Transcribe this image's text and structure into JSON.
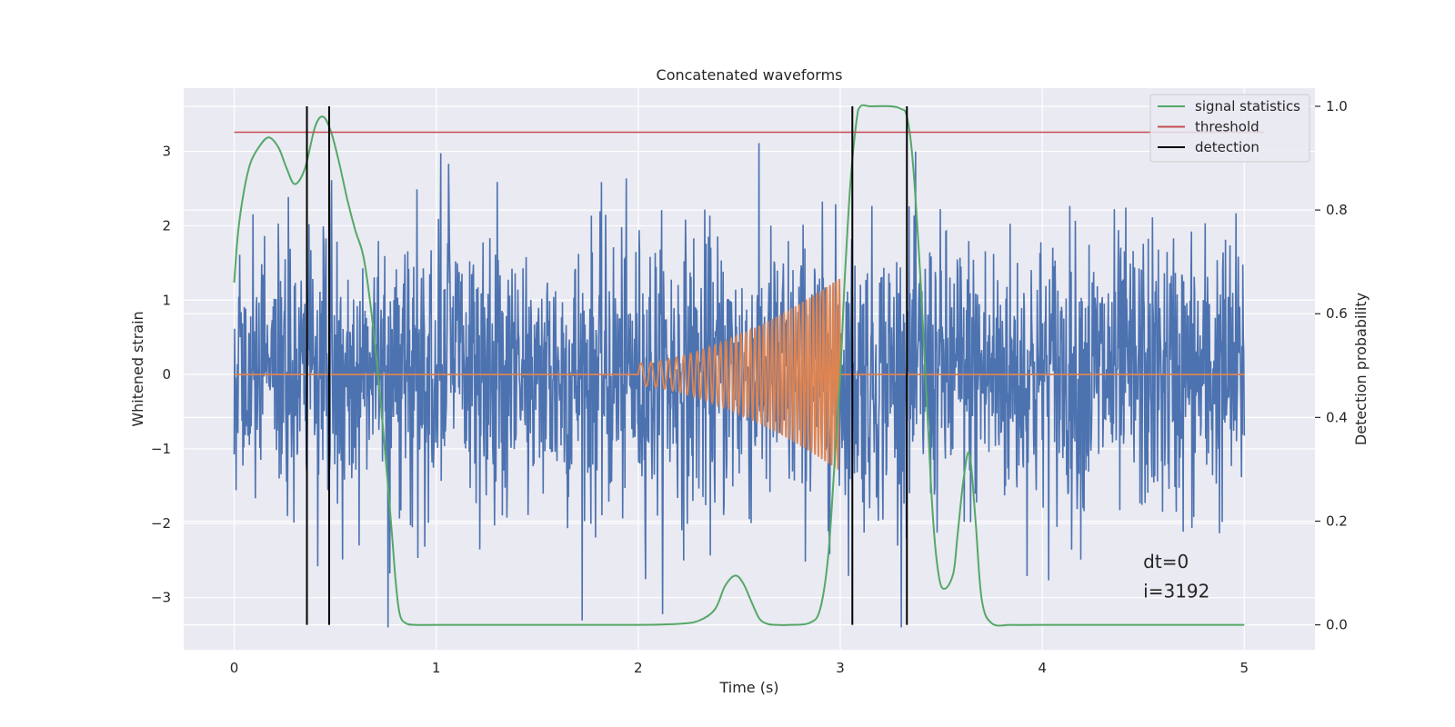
{
  "chart_data": {
    "type": "line",
    "title": "Concatenated waveforms",
    "xlabel": "Time (s)",
    "ylabel": "Whitened strain",
    "y2label": "Detection probability",
    "xlim": [
      -0.25,
      5.35
    ],
    "ylim": [
      -3.7,
      3.85
    ],
    "y2lim": [
      -0.048,
      1.035
    ],
    "xticks": [
      0,
      1,
      2,
      3,
      4,
      5
    ],
    "xtick_labels": [
      "0",
      "1",
      "2",
      "3",
      "4",
      "5"
    ],
    "yticks": [
      -3,
      -2,
      -1,
      0,
      1,
      2,
      3
    ],
    "ytick_labels": [
      "−3",
      "−2",
      "−1",
      "0",
      "1",
      "2",
      "3"
    ],
    "y2ticks": [
      0.0,
      0.2,
      0.4,
      0.6,
      0.8,
      1.0
    ],
    "y2tick_labels": [
      "0.0",
      "0.2",
      "0.4",
      "0.6",
      "0.8",
      "1.0"
    ],
    "grid": true,
    "legend_position": "top-right",
    "colors": {
      "noise": "#4c72b0",
      "injection": "#dd8452",
      "signal_statistics": "#55a868",
      "threshold": "#c44e52",
      "detection": "#000000",
      "background": "#eaeaf2",
      "grid": "#ffffff"
    },
    "legend": [
      {
        "label": "signal statistics",
        "color": "#55a868"
      },
      {
        "label": "threshold",
        "color": "#c44e52"
      },
      {
        "label": "detection",
        "color": "#000000"
      }
    ],
    "series": [
      {
        "name": "signal statistics",
        "axis": "right",
        "x": [
          0.0,
          0.02,
          0.05,
          0.08,
          0.12,
          0.17,
          0.22,
          0.26,
          0.3,
          0.35,
          0.4,
          0.44,
          0.48,
          0.52,
          0.56,
          0.6,
          0.64,
          0.68,
          0.72,
          0.75,
          0.78,
          0.8,
          0.82,
          0.85,
          0.9,
          1.0,
          1.5,
          2.0,
          2.2,
          2.3,
          2.38,
          2.43,
          2.48,
          2.52,
          2.56,
          2.6,
          2.64,
          2.68,
          2.75,
          2.85,
          2.9,
          2.94,
          2.97,
          3.0,
          3.02,
          3.05,
          3.08,
          3.1,
          3.15,
          3.25,
          3.3,
          3.33,
          3.36,
          3.4,
          3.43,
          3.46,
          3.49,
          3.52,
          3.56,
          3.58,
          3.61,
          3.64,
          3.67,
          3.7,
          3.75,
          3.85,
          4.0,
          4.5,
          5.0
        ],
        "y": [
          0.66,
          0.76,
          0.84,
          0.89,
          0.92,
          0.94,
          0.92,
          0.88,
          0.85,
          0.88,
          0.96,
          0.98,
          0.95,
          0.89,
          0.82,
          0.76,
          0.71,
          0.6,
          0.45,
          0.32,
          0.18,
          0.08,
          0.02,
          0.003,
          0.0,
          0.0,
          0.0,
          0.0,
          0.002,
          0.008,
          0.03,
          0.075,
          0.095,
          0.08,
          0.045,
          0.012,
          0.002,
          0.0,
          0.0,
          0.004,
          0.03,
          0.13,
          0.3,
          0.48,
          0.65,
          0.85,
          0.97,
          1.0,
          1.0,
          1.0,
          0.995,
          0.98,
          0.89,
          0.65,
          0.42,
          0.2,
          0.09,
          0.07,
          0.1,
          0.17,
          0.28,
          0.33,
          0.2,
          0.05,
          0.003,
          0.0,
          0.0,
          0.0,
          0.0
        ]
      },
      {
        "name": "threshold",
        "axis": "right",
        "x": [
          0.0,
          5.1
        ],
        "y": [
          0.95,
          0.95
        ]
      },
      {
        "name": "detection",
        "axis": "right",
        "type": "vlines",
        "x": [
          0.36,
          0.47,
          3.06,
          3.33
        ],
        "ymin": 0.0,
        "ymax": 1.0
      },
      {
        "name": "",
        "axis": "left",
        "description_free": true,
        "x_range": [
          0.0,
          5.0
        ],
        "amplitude": 1.0
      },
      {
        "name": "",
        "axis": "left",
        "type": "chirp",
        "x_range": [
          2.0,
          3.0
        ],
        "amp_start": 0.15,
        "amp_end": 1.3,
        "f_start": 18,
        "f_end": 65
      }
    ],
    "annotations": [
      {
        "text": "dt=0",
        "x": 4.5,
        "y": -2.6
      },
      {
        "text": "i=3192",
        "x": 4.5,
        "y": -3.0
      }
    ]
  }
}
